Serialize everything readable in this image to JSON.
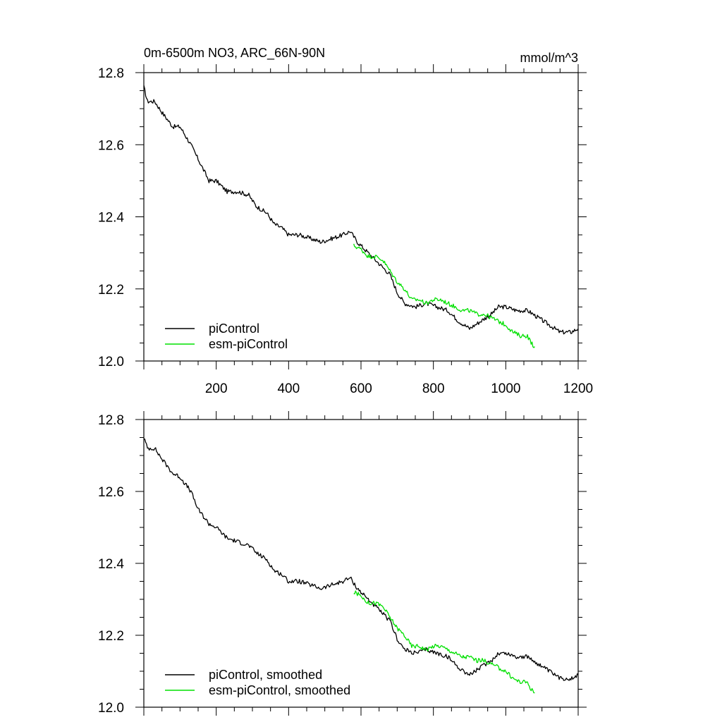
{
  "chart_data": [
    {
      "type": "line",
      "title": "0m-6500m NO3, ARC_66N-90N",
      "units": "mmol/m^3",
      "xlim": [
        0,
        1200
      ],
      "ylim": [
        12.0,
        12.8
      ],
      "x_ticks": [
        200,
        400,
        600,
        800,
        1000,
        1200
      ],
      "y_ticks": [
        12.0,
        12.2,
        12.4,
        12.6,
        12.8
      ],
      "x_tick_labels": [
        "200",
        "400",
        "600",
        "800",
        "1000",
        "1200"
      ],
      "y_tick_labels": [
        "12.0",
        "12.2",
        "12.4",
        "12.6",
        "12.8"
      ],
      "legend_position": "bottom-left",
      "series": [
        {
          "name": "piControl",
          "color": "#000000",
          "x": [
            0,
            10,
            30,
            50,
            80,
            100,
            130,
            150,
            180,
            200,
            230,
            260,
            290,
            310,
            340,
            360,
            380,
            400,
            430,
            460,
            490,
            520,
            550,
            570,
            590,
            620,
            650,
            680,
            700,
            720,
            750,
            780,
            810,
            840,
            870,
            900,
            930,
            960,
            980,
            1000,
            1030,
            1060,
            1090,
            1120,
            1150,
            1180,
            1200
          ],
          "values": [
            12.76,
            12.72,
            12.72,
            12.69,
            12.65,
            12.65,
            12.6,
            12.56,
            12.5,
            12.5,
            12.47,
            12.47,
            12.46,
            12.43,
            12.41,
            12.38,
            12.37,
            12.35,
            12.35,
            12.34,
            12.33,
            12.34,
            12.35,
            12.36,
            12.33,
            12.3,
            12.27,
            12.24,
            12.19,
            12.16,
            12.15,
            12.16,
            12.15,
            12.14,
            12.11,
            12.09,
            12.11,
            12.13,
            12.15,
            12.15,
            12.14,
            12.14,
            12.12,
            12.1,
            12.08,
            12.08,
            12.09
          ]
        },
        {
          "name": "esm-piControl",
          "color": "#00e000",
          "x": [
            580,
            600,
            620,
            640,
            660,
            680,
            700,
            720,
            740,
            760,
            780,
            800,
            820,
            840,
            860,
            880,
            900,
            920,
            940,
            960,
            980,
            1000,
            1020,
            1040,
            1060,
            1070,
            1080
          ],
          "values": [
            12.32,
            12.31,
            12.29,
            12.29,
            12.28,
            12.25,
            12.22,
            12.2,
            12.17,
            12.17,
            12.16,
            12.17,
            12.17,
            12.16,
            12.15,
            12.14,
            12.14,
            12.13,
            12.13,
            12.12,
            12.11,
            12.1,
            12.08,
            12.07,
            12.07,
            12.05,
            12.04
          ]
        }
      ]
    },
    {
      "type": "line",
      "title": "",
      "xlim": [
        0,
        1200
      ],
      "ylim": [
        12.0,
        12.8
      ],
      "y_ticks": [
        12.0,
        12.2,
        12.4,
        12.6,
        12.8
      ],
      "y_tick_labels": [
        "12.0",
        "12.2",
        "12.4",
        "12.6",
        "12.8"
      ],
      "legend_position": "bottom-left",
      "series": [
        {
          "name": "piControl, smoothed",
          "color": "#000000",
          "x": [
            0,
            10,
            30,
            50,
            80,
            100,
            130,
            150,
            180,
            200,
            230,
            260,
            290,
            310,
            340,
            360,
            380,
            400,
            430,
            460,
            490,
            520,
            550,
            570,
            590,
            620,
            650,
            680,
            700,
            720,
            750,
            780,
            810,
            840,
            870,
            900,
            930,
            960,
            980,
            1000,
            1030,
            1060,
            1090,
            1120,
            1150,
            1180,
            1200
          ],
          "values": [
            12.75,
            12.72,
            12.72,
            12.69,
            12.65,
            12.64,
            12.6,
            12.55,
            12.51,
            12.5,
            12.47,
            12.46,
            12.45,
            12.43,
            12.41,
            12.38,
            12.37,
            12.35,
            12.35,
            12.34,
            12.33,
            12.34,
            12.35,
            12.36,
            12.33,
            12.3,
            12.27,
            12.24,
            12.19,
            12.16,
            12.15,
            12.16,
            12.15,
            12.14,
            12.11,
            12.09,
            12.11,
            12.13,
            12.15,
            12.15,
            12.14,
            12.14,
            12.12,
            12.1,
            12.08,
            12.08,
            12.09
          ]
        },
        {
          "name": "esm-piControl, smoothed",
          "color": "#00e000",
          "x": [
            580,
            600,
            620,
            640,
            660,
            680,
            700,
            720,
            740,
            760,
            780,
            800,
            820,
            840,
            860,
            880,
            900,
            920,
            940,
            960,
            980,
            1000,
            1020,
            1040,
            1060,
            1070,
            1080
          ],
          "values": [
            12.32,
            12.31,
            12.29,
            12.29,
            12.28,
            12.25,
            12.22,
            12.2,
            12.17,
            12.17,
            12.16,
            12.17,
            12.17,
            12.16,
            12.15,
            12.14,
            12.14,
            12.13,
            12.13,
            12.12,
            12.11,
            12.1,
            12.08,
            12.07,
            12.07,
            12.05,
            12.04
          ]
        }
      ]
    }
  ]
}
